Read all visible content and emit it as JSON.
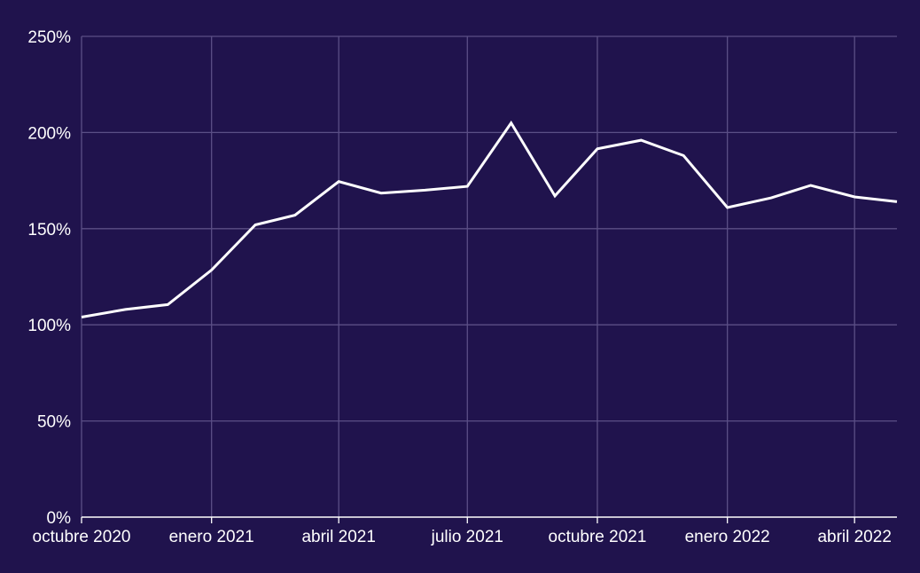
{
  "colors": {
    "background": "#20134d",
    "grid": "#5b4f86",
    "axis": "#ffffff",
    "line": "#ffffff",
    "text": "#ffffff"
  },
  "chart_data": {
    "type": "line",
    "title": "",
    "xlabel": "",
    "ylabel": "",
    "grid": true,
    "legend": "none",
    "x_range": [
      "2020-10-01",
      "2022-05-01"
    ],
    "ylim": [
      0,
      250
    ],
    "y_ticks": [
      {
        "value": 0,
        "label": "0%"
      },
      {
        "value": 50,
        "label": "50%"
      },
      {
        "value": 100,
        "label": "100%"
      },
      {
        "value": 150,
        "label": "150%"
      },
      {
        "value": 200,
        "label": "200%"
      },
      {
        "value": 250,
        "label": "250%"
      }
    ],
    "x_ticks": [
      {
        "date": "2020-10-01",
        "label": "octubre 2020"
      },
      {
        "date": "2021-01-01",
        "label": "enero 2021"
      },
      {
        "date": "2021-04-01",
        "label": "abril 2021"
      },
      {
        "date": "2021-07-01",
        "label": "julio 2021"
      },
      {
        "date": "2021-10-01",
        "label": "octubre 2021"
      },
      {
        "date": "2022-01-01",
        "label": "enero 2022"
      },
      {
        "date": "2022-04-01",
        "label": "abril 2022"
      }
    ],
    "series": [
      {
        "points": [
          {
            "date": "2020-10-01",
            "value": 104
          },
          {
            "date": "2020-11-01",
            "value": 108
          },
          {
            "date": "2020-12-01",
            "value": 110.5
          },
          {
            "date": "2021-01-01",
            "value": 128.5
          },
          {
            "date": "2021-02-01",
            "value": 152
          },
          {
            "date": "2021-03-01",
            "value": 157
          },
          {
            "date": "2021-04-01",
            "value": 174.5
          },
          {
            "date": "2021-05-01",
            "value": 168.5
          },
          {
            "date": "2021-06-01",
            "value": 170
          },
          {
            "date": "2021-07-01",
            "value": 172
          },
          {
            "date": "2021-08-01",
            "value": 205
          },
          {
            "date": "2021-09-01",
            "value": 167
          },
          {
            "date": "2021-10-01",
            "value": 191.5
          },
          {
            "date": "2021-11-01",
            "value": 196
          },
          {
            "date": "2021-12-01",
            "value": 188
          },
          {
            "date": "2022-01-01",
            "value": 161
          },
          {
            "date": "2022-02-01",
            "value": 166
          },
          {
            "date": "2022-03-01",
            "value": 172.5
          },
          {
            "date": "2022-04-01",
            "value": 166.5
          },
          {
            "date": "2022-05-01",
            "value": 164
          }
        ]
      }
    ]
  }
}
